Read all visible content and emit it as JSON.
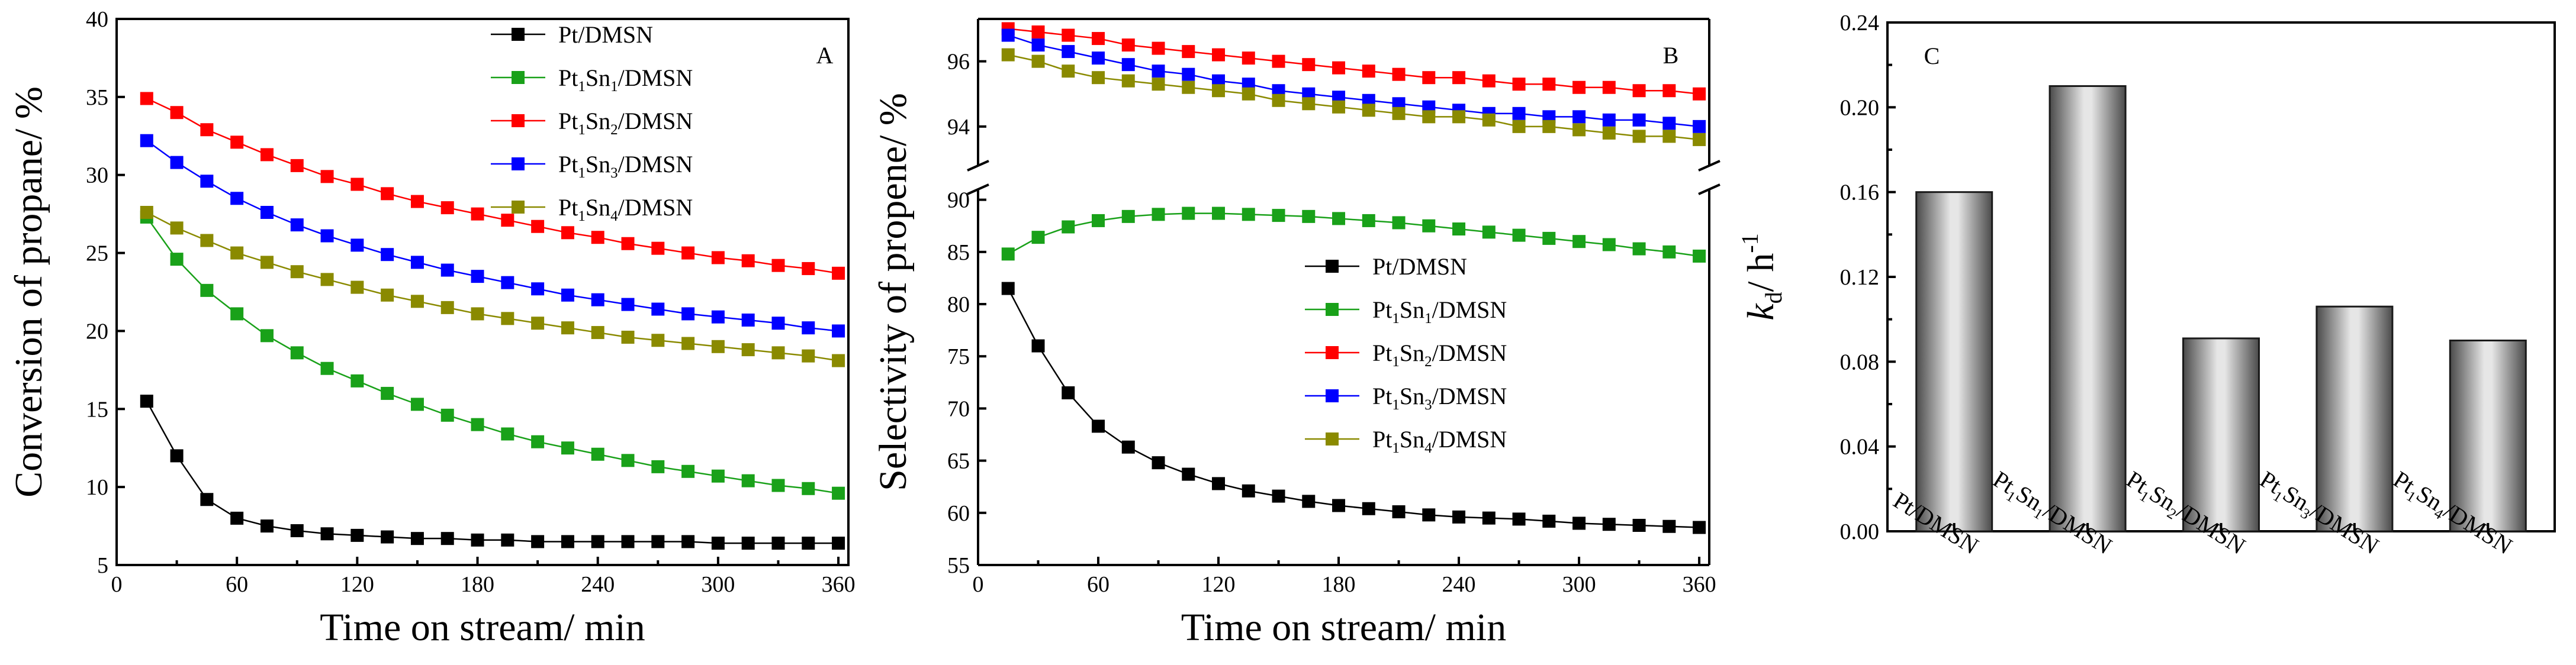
{
  "colors": {
    "Pt/DMSN": "#000000",
    "Pt1Sn1/DMSN": "#19a119",
    "Pt1Sn2/DMSN": "#ff0000",
    "Pt1Sn3/DMSN": "#0000ff",
    "Pt1Sn4/DMSN": "#8a8a00"
  },
  "chart_data": [
    {
      "type": "line",
      "panel_label": "A",
      "xlabel": "Time on stream/ min",
      "ylabel": "Conversion of propane/ %",
      "xlim": [
        0,
        365
      ],
      "ylim": [
        5,
        40
      ],
      "x_ticks": [
        0,
        60,
        120,
        180,
        240,
        300,
        360
      ],
      "x_tick_labels": [
        "0",
        "60",
        "120",
        "180",
        "240",
        "300",
        "360"
      ],
      "y_ticks": [
        5,
        10,
        15,
        20,
        25,
        30,
        35,
        40
      ],
      "y_tick_labels": [
        "5",
        "10",
        "15",
        "20",
        "25",
        "30",
        "35",
        "40"
      ],
      "legend_position": "top-right",
      "x": [
        15,
        30,
        45,
        60,
        75,
        90,
        105,
        120,
        135,
        150,
        165,
        180,
        195,
        210,
        225,
        240,
        255,
        270,
        285,
        300,
        315,
        330,
        345,
        360
      ],
      "series": [
        {
          "name": "Pt/DMSN",
          "legend": [
            "Pt/DMSN"
          ],
          "values": [
            15.5,
            12.0,
            9.2,
            8.0,
            7.5,
            7.2,
            7.0,
            6.9,
            6.8,
            6.7,
            6.7,
            6.6,
            6.6,
            6.5,
            6.5,
            6.5,
            6.5,
            6.5,
            6.5,
            6.4,
            6.4,
            6.4,
            6.4,
            6.4
          ]
        },
        {
          "name": "Pt1Sn1/DMSN",
          "legend": [
            "Pt",
            "1",
            "Sn",
            "1",
            "/DMSN"
          ],
          "values": [
            27.3,
            24.6,
            22.6,
            21.1,
            19.7,
            18.6,
            17.6,
            16.8,
            16.0,
            15.3,
            14.6,
            14.0,
            13.4,
            12.9,
            12.5,
            12.1,
            11.7,
            11.3,
            11.0,
            10.7,
            10.4,
            10.1,
            9.9,
            9.6
          ]
        },
        {
          "name": "Pt1Sn2/DMSN",
          "legend": [
            "Pt",
            "1",
            "Sn",
            "2",
            "/DMSN"
          ],
          "values": [
            34.9,
            34.0,
            32.9,
            32.1,
            31.3,
            30.6,
            29.9,
            29.4,
            28.8,
            28.3,
            27.9,
            27.5,
            27.1,
            26.7,
            26.3,
            26.0,
            25.6,
            25.3,
            25.0,
            24.7,
            24.5,
            24.2,
            24.0,
            23.7
          ]
        },
        {
          "name": "Pt1Sn3/DMSN",
          "legend": [
            "Pt",
            "1",
            "Sn",
            "3",
            "/DMSN"
          ],
          "values": [
            32.2,
            30.8,
            29.6,
            28.5,
            27.6,
            26.8,
            26.1,
            25.5,
            24.9,
            24.4,
            23.9,
            23.5,
            23.1,
            22.7,
            22.3,
            22.0,
            21.7,
            21.4,
            21.1,
            20.9,
            20.7,
            20.5,
            20.2,
            20.0
          ]
        },
        {
          "name": "Pt1Sn4/DMSN",
          "legend": [
            "Pt",
            "1",
            "Sn",
            "4",
            "/DMSN"
          ],
          "values": [
            27.6,
            26.6,
            25.8,
            25.0,
            24.4,
            23.8,
            23.3,
            22.8,
            22.3,
            21.9,
            21.5,
            21.1,
            20.8,
            20.5,
            20.2,
            19.9,
            19.6,
            19.4,
            19.2,
            19.0,
            18.8,
            18.6,
            18.4,
            18.1
          ]
        }
      ]
    },
    {
      "type": "line",
      "panel_label": "B",
      "xlabel": "Time on stream/ min",
      "ylabel": "Selectivity of propene/ %",
      "xlim": [
        0,
        365
      ],
      "axis_break": true,
      "ylim_lower": [
        55,
        91
      ],
      "ylim_upper": [
        92.8,
        97.3
      ],
      "x_ticks": [
        0,
        60,
        120,
        180,
        240,
        300,
        360
      ],
      "x_tick_labels": [
        "0",
        "60",
        "120",
        "180",
        "240",
        "300",
        "360"
      ],
      "y_ticks_lower": [
        55,
        60,
        65,
        70,
        75,
        80,
        85,
        90
      ],
      "y_tick_labels_lower": [
        "55",
        "60",
        "65",
        "70",
        "75",
        "80",
        "85",
        "90"
      ],
      "y_ticks_upper": [
        94,
        96
      ],
      "y_tick_labels_upper": [
        "94",
        "96"
      ],
      "legend_position": "center-right",
      "x": [
        15,
        30,
        45,
        60,
        75,
        90,
        105,
        120,
        135,
        150,
        165,
        180,
        195,
        210,
        225,
        240,
        255,
        270,
        285,
        300,
        315,
        330,
        345,
        360
      ],
      "series": [
        {
          "name": "Pt/DMSN",
          "legend": [
            "Pt/DMSN"
          ],
          "values": [
            81.5,
            76.0,
            71.5,
            68.3,
            66.3,
            64.8,
            63.7,
            62.8,
            62.1,
            61.6,
            61.1,
            60.7,
            60.4,
            60.1,
            59.8,
            59.6,
            59.5,
            59.4,
            59.2,
            59.0,
            58.9,
            58.8,
            58.7,
            58.6
          ]
        },
        {
          "name": "Pt1Sn1/DMSN",
          "legend": [
            "Pt",
            "1",
            "Sn",
            "1",
            "/DMSN"
          ],
          "values": [
            84.8,
            86.4,
            87.4,
            88.0,
            88.4,
            88.6,
            88.7,
            88.7,
            88.6,
            88.5,
            88.4,
            88.2,
            88.0,
            87.8,
            87.5,
            87.2,
            86.9,
            86.6,
            86.3,
            86.0,
            85.7,
            85.3,
            85.0,
            84.6
          ]
        },
        {
          "name": "Pt1Sn2/DMSN",
          "legend": [
            "Pt",
            "1",
            "Sn",
            "2",
            "/DMSN"
          ],
          "values": [
            97.0,
            96.9,
            96.8,
            96.7,
            96.5,
            96.4,
            96.3,
            96.2,
            96.1,
            96.0,
            95.9,
            95.8,
            95.7,
            95.6,
            95.5,
            95.5,
            95.4,
            95.3,
            95.3,
            95.2,
            95.2,
            95.1,
            95.1,
            95.0
          ]
        },
        {
          "name": "Pt1Sn3/DMSN",
          "legend": [
            "Pt",
            "1",
            "Sn",
            "3",
            "/DMSN"
          ],
          "values": [
            96.8,
            96.5,
            96.3,
            96.1,
            95.9,
            95.7,
            95.6,
            95.4,
            95.3,
            95.1,
            95.0,
            94.9,
            94.8,
            94.7,
            94.6,
            94.5,
            94.4,
            94.4,
            94.3,
            94.3,
            94.2,
            94.2,
            94.1,
            94.0
          ]
        },
        {
          "name": "Pt1Sn4/DMSN",
          "legend": [
            "Pt",
            "1",
            "Sn",
            "4",
            "/DMSN"
          ],
          "values": [
            96.2,
            96.0,
            95.7,
            95.5,
            95.4,
            95.3,
            95.2,
            95.1,
            95.0,
            94.8,
            94.7,
            94.6,
            94.5,
            94.4,
            94.3,
            94.3,
            94.2,
            94.0,
            94.0,
            93.9,
            93.8,
            93.7,
            93.7,
            93.6
          ]
        }
      ]
    },
    {
      "type": "bar",
      "panel_label": "C",
      "xlabel": "",
      "ylabel": {
        "k": "k",
        "sub": "d",
        "rest": "/ h",
        "sup": "-1"
      },
      "ylim": [
        0,
        0.24
      ],
      "y_ticks": [
        0,
        0.04,
        0.08,
        0.12,
        0.16,
        0.2,
        0.24
      ],
      "y_tick_labels": [
        "0.00",
        "0.04",
        "0.08",
        "0.12",
        "0.16",
        "0.20",
        "0.24"
      ],
      "categories": [
        "Pt/DMSN",
        "Pt1Sn1/DMSN",
        "Pt1Sn2/DMSN",
        "Pt1Sn3/DMSN",
        "Pt1Sn4/DMSN"
      ],
      "category_labels": [
        [
          "Pt/DMSN"
        ],
        [
          "Pt",
          "1",
          "Sn",
          "1",
          "/DMSN"
        ],
        [
          "Pt",
          "1",
          "Sn",
          "2",
          "/DMSN"
        ],
        [
          "Pt",
          "1",
          "Sn",
          "3",
          "/DMSN"
        ],
        [
          "Pt",
          "1",
          "Sn",
          "4",
          "/DMSN"
        ]
      ],
      "values": [
        0.16,
        0.21,
        0.091,
        0.106,
        0.09
      ]
    }
  ]
}
